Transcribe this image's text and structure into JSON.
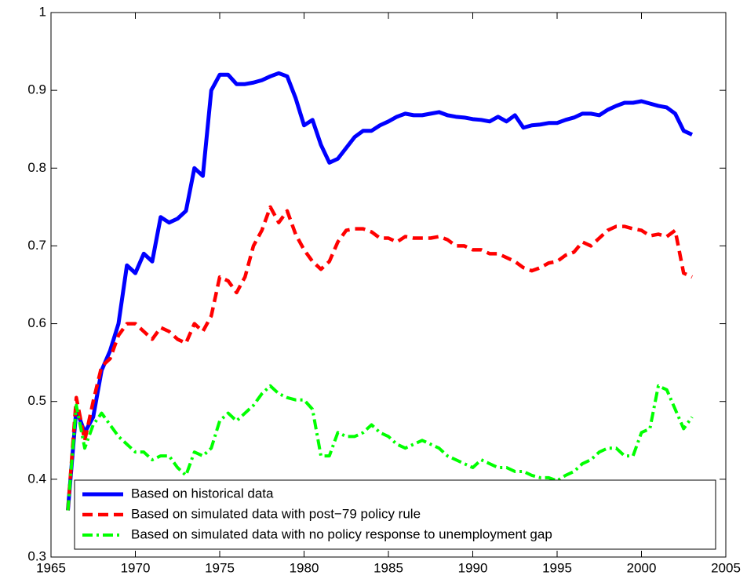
{
  "chart_data": {
    "type": "line",
    "x": [
      1966,
      1966.5,
      1967,
      1967.5,
      1968,
      1968.5,
      1969,
      1969.5,
      1970,
      1970.5,
      1971,
      1971.5,
      1972,
      1972.5,
      1973,
      1973.5,
      1974,
      1974.5,
      1975,
      1975.5,
      1976,
      1976.5,
      1977,
      1977.5,
      1978,
      1978.5,
      1979,
      1979.5,
      1980,
      1980.5,
      1981,
      1981.5,
      1982,
      1982.5,
      1983,
      1983.5,
      1984,
      1984.5,
      1985,
      1985.5,
      1986,
      1986.5,
      1987,
      1987.5,
      1988,
      1988.5,
      1989,
      1989.5,
      1990,
      1990.5,
      1991,
      1991.5,
      1992,
      1992.5,
      1993,
      1993.5,
      1994,
      1994.5,
      1995,
      1995.5,
      1996,
      1996.5,
      1997,
      1997.5,
      1998,
      1998.5,
      1999,
      1999.5,
      2000,
      2000.5,
      2001,
      2001.5,
      2002,
      2002.5,
      2003
    ],
    "series": [
      {
        "name": "Based on historical data",
        "color": "#0000ff",
        "style": "solid",
        "values": [
          0.36,
          0.49,
          0.46,
          0.48,
          0.54,
          0.565,
          0.6,
          0.675,
          0.665,
          0.69,
          0.68,
          0.737,
          0.73,
          0.735,
          0.745,
          0.8,
          0.79,
          0.9,
          0.92,
          0.92,
          0.908,
          0.908,
          0.91,
          0.913,
          0.918,
          0.922,
          0.918,
          0.89,
          0.855,
          0.862,
          0.83,
          0.807,
          0.812,
          0.826,
          0.84,
          0.848,
          0.848,
          0.855,
          0.86,
          0.866,
          0.87,
          0.868,
          0.868,
          0.87,
          0.872,
          0.868,
          0.866,
          0.865,
          0.863,
          0.862,
          0.86,
          0.866,
          0.86,
          0.868,
          0.852,
          0.855,
          0.856,
          0.858,
          0.858,
          0.862,
          0.865,
          0.87,
          0.87,
          0.868,
          0.875,
          0.88,
          0.884,
          0.884,
          0.886,
          0.883,
          0.88,
          0.878,
          0.87,
          0.848,
          0.843
        ]
      },
      {
        "name": "Based on simulated data with post−79 policy rule",
        "color": "#ff0000",
        "style": "dashed",
        "values": [
          0.36,
          0.505,
          0.45,
          0.5,
          0.545,
          0.555,
          0.585,
          0.6,
          0.6,
          0.59,
          0.58,
          0.595,
          0.59,
          0.58,
          0.575,
          0.6,
          0.59,
          0.61,
          0.66,
          0.655,
          0.64,
          0.66,
          0.7,
          0.72,
          0.75,
          0.73,
          0.745,
          0.715,
          0.695,
          0.68,
          0.67,
          0.68,
          0.705,
          0.72,
          0.722,
          0.722,
          0.718,
          0.71,
          0.71,
          0.705,
          0.712,
          0.71,
          0.71,
          0.71,
          0.712,
          0.708,
          0.7,
          0.7,
          0.695,
          0.695,
          0.69,
          0.69,
          0.685,
          0.68,
          0.672,
          0.668,
          0.672,
          0.678,
          0.68,
          0.688,
          0.692,
          0.705,
          0.7,
          0.71,
          0.72,
          0.725,
          0.725,
          0.722,
          0.72,
          0.713,
          0.715,
          0.712,
          0.72,
          0.665,
          0.66
        ]
      },
      {
        "name": "Based on simulated data with no policy response to unemployment gap",
        "color": "#00ff00",
        "style": "dashdot",
        "values": [
          0.36,
          0.495,
          0.44,
          0.47,
          0.485,
          0.47,
          0.455,
          0.445,
          0.435,
          0.435,
          0.425,
          0.43,
          0.43,
          0.415,
          0.405,
          0.435,
          0.43,
          0.44,
          0.475,
          0.485,
          0.475,
          0.485,
          0.495,
          0.51,
          0.52,
          0.51,
          0.505,
          0.502,
          0.502,
          0.49,
          0.43,
          0.43,
          0.46,
          0.455,
          0.455,
          0.46,
          0.47,
          0.46,
          0.455,
          0.445,
          0.44,
          0.445,
          0.45,
          0.445,
          0.44,
          0.43,
          0.425,
          0.42,
          0.415,
          0.425,
          0.42,
          0.415,
          0.415,
          0.41,
          0.41,
          0.405,
          0.402,
          0.402,
          0.398,
          0.405,
          0.41,
          0.42,
          0.425,
          0.435,
          0.44,
          0.44,
          0.43,
          0.43,
          0.46,
          0.465,
          0.52,
          0.515,
          0.49,
          0.465,
          0.48
        ]
      }
    ],
    "xlim": [
      1965,
      2005
    ],
    "xticks": [
      1965,
      1970,
      1975,
      1980,
      1985,
      1990,
      1995,
      2000,
      2005
    ],
    "ylim": [
      0.3,
      1
    ],
    "yticks": [
      0.3,
      0.4,
      0.5,
      0.6,
      0.7,
      0.8,
      0.9,
      1
    ],
    "legend": "lower left"
  }
}
